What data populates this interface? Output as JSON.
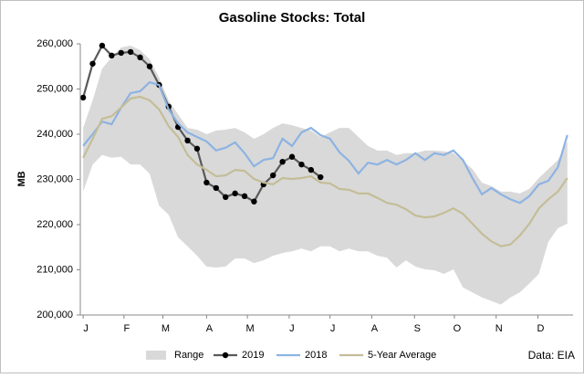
{
  "chart_data": {
    "type": "line",
    "title": "Gasoline Stocks: Total",
    "y_label": "MB",
    "annotation": "Data: EIA",
    "x": [
      0,
      1,
      2,
      3,
      4,
      5,
      6,
      7,
      8,
      9,
      10,
      11,
      12,
      13,
      14,
      15,
      16,
      17,
      18,
      19,
      20,
      21,
      22,
      23,
      24,
      25,
      26,
      27,
      28,
      29,
      30,
      31,
      32,
      33,
      34,
      35,
      36,
      37,
      38,
      39,
      40,
      41,
      42,
      43,
      44,
      45,
      46,
      47,
      48,
      49,
      50,
      51
    ],
    "xlim": [
      -0.3,
      51.6
    ],
    "xticks": [
      {
        "value": 0,
        "label": "J"
      },
      {
        "value": 4.3,
        "label": "F"
      },
      {
        "value": 8.4,
        "label": "M"
      },
      {
        "value": 13.0,
        "label": "A"
      },
      {
        "value": 17.3,
        "label": "M"
      },
      {
        "value": 21.7,
        "label": "J"
      },
      {
        "value": 26.0,
        "label": "J"
      },
      {
        "value": 30.4,
        "label": "A"
      },
      {
        "value": 34.9,
        "label": "S"
      },
      {
        "value": 39.1,
        "label": "O"
      },
      {
        "value": 43.5,
        "label": "N"
      },
      {
        "value": 47.9,
        "label": "D"
      }
    ],
    "ylim": [
      200000,
      260000
    ],
    "yticks": [
      {
        "value": 200000,
        "label": "200,000"
      },
      {
        "value": 210000,
        "label": "210,000"
      },
      {
        "value": 220000,
        "label": "220,000"
      },
      {
        "value": 230000,
        "label": "230,000"
      },
      {
        "value": 240000,
        "label": "240,000"
      },
      {
        "value": 250000,
        "label": "250,000"
      },
      {
        "value": 260000,
        "label": "260,000"
      }
    ],
    "grid": false,
    "legend": "bottom",
    "series": [
      {
        "name": "Range",
        "kind": "range",
        "color": "#d9d9d9",
        "upper": [
          241400,
          247500,
          254500,
          257000,
          259200,
          259600,
          258600,
          256600,
          252500,
          247500,
          244400,
          241400,
          241000,
          240000,
          240800,
          241000,
          241400,
          240400,
          239000,
          240000,
          241400,
          242400,
          242000,
          241400,
          240800,
          239400,
          240400,
          241400,
          241400,
          239400,
          237400,
          236400,
          236400,
          235400,
          235800,
          235800,
          236400,
          236400,
          236200,
          235800,
          234100,
          232300,
          229300,
          228500,
          227300,
          227300,
          226900,
          227900,
          230300,
          232300,
          234300,
          238400
        ],
        "lower": [
          227300,
          233300,
          235400,
          234800,
          235000,
          233300,
          233300,
          231300,
          224200,
          222200,
          217200,
          215200,
          213100,
          210700,
          210500,
          210700,
          212500,
          212500,
          211500,
          212100,
          213100,
          213700,
          214100,
          214700,
          214100,
          215200,
          215200,
          214100,
          214700,
          214100,
          214100,
          213100,
          212700,
          210500,
          212100,
          210700,
          210100,
          209900,
          209100,
          210100,
          206100,
          205000,
          203900,
          203100,
          202300,
          203900,
          205000,
          207000,
          209100,
          216200,
          219200,
          220200
        ]
      },
      {
        "name": "2019",
        "kind": "line",
        "color": "#595959",
        "marker": "#000000",
        "values": [
          248100,
          255600,
          259600,
          257400,
          258000,
          258200,
          257000,
          255000,
          250900,
          246100,
          241600,
          238600,
          236800,
          229300,
          228100,
          226100,
          226900,
          226300,
          225100,
          228900,
          230900,
          233900,
          235000,
          233300,
          232100,
          230500,
          null,
          null,
          null,
          null,
          null,
          null,
          null,
          null,
          null,
          null,
          null,
          null,
          null,
          null,
          null,
          null,
          null,
          null,
          null,
          null,
          null,
          null,
          null,
          null,
          null,
          null
        ]
      },
      {
        "name": "2018",
        "kind": "line",
        "color": "#8db3e2",
        "values": [
          237400,
          240000,
          242800,
          242200,
          245900,
          249100,
          249500,
          251500,
          250900,
          245500,
          242400,
          240400,
          239400,
          238400,
          236400,
          237000,
          238200,
          235800,
          232900,
          234300,
          234700,
          239000,
          237400,
          240400,
          241400,
          239800,
          239000,
          236000,
          234100,
          231300,
          233700,
          233300,
          234300,
          233300,
          234300,
          235800,
          234300,
          235800,
          235400,
          236400,
          234300,
          230300,
          226700,
          228100,
          226700,
          225600,
          224800,
          226300,
          228900,
          229700,
          232700,
          239800
        ]
      },
      {
        "name": "5-Year Average",
        "kind": "line",
        "color": "#c4bd97",
        "values": [
          234800,
          239000,
          243400,
          244000,
          245900,
          247900,
          248300,
          247500,
          245500,
          241800,
          239400,
          235400,
          233300,
          232100,
          230700,
          230900,
          232100,
          231900,
          230100,
          229300,
          228900,
          230300,
          230100,
          230300,
          230700,
          229300,
          229100,
          227900,
          227700,
          226900,
          226900,
          225900,
          224800,
          224400,
          223400,
          222000,
          221600,
          221800,
          222600,
          223600,
          222400,
          220200,
          218000,
          216300,
          215200,
          215600,
          217600,
          220200,
          223600,
          225600,
          227300,
          230300
        ]
      }
    ]
  }
}
